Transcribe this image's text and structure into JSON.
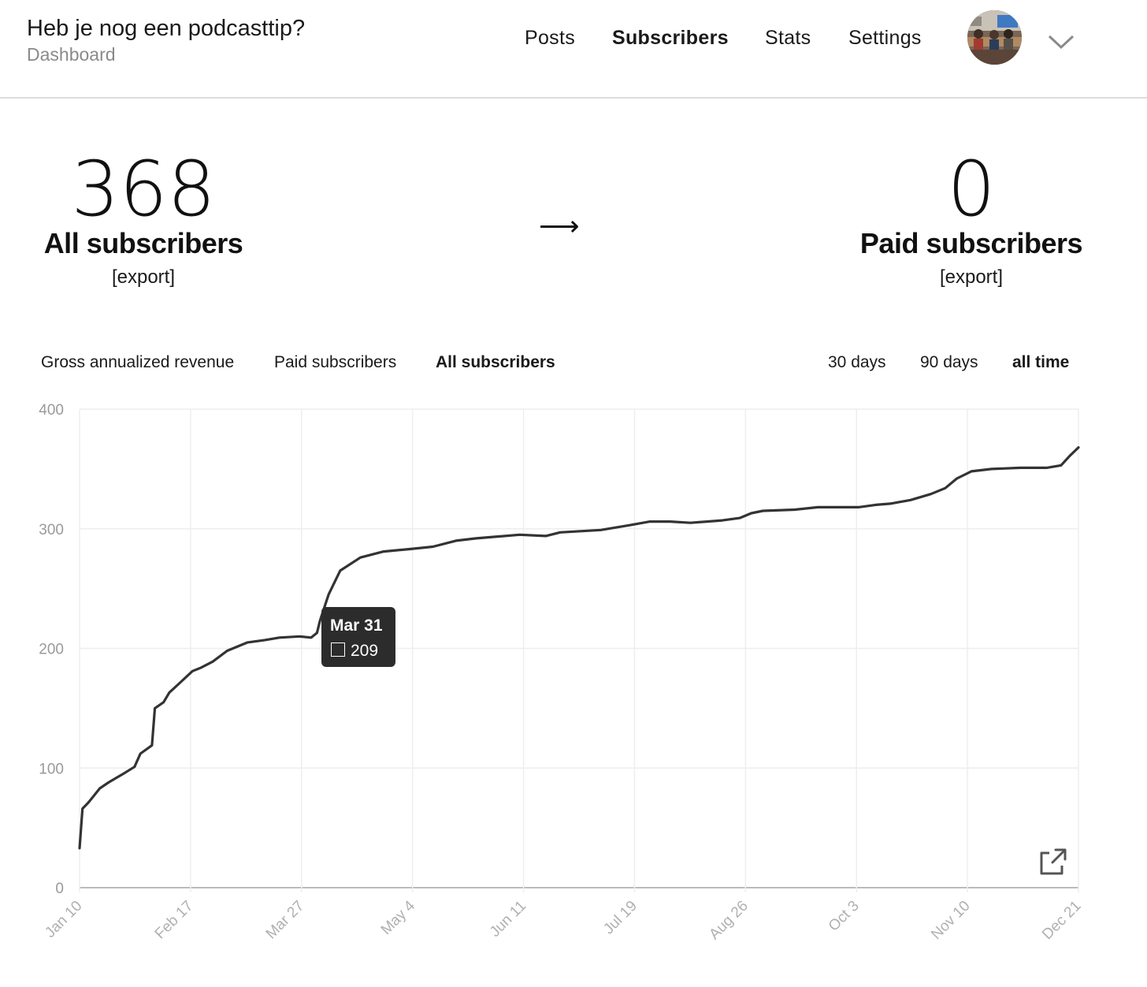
{
  "header": {
    "title": "Heb je nog een podcasttip?",
    "subtitle": "Dashboard",
    "nav": [
      "Posts",
      "Subscribers",
      "Stats",
      "Settings"
    ],
    "active_nav": "Subscribers",
    "avatar_icon": "profile-photo",
    "menu_icon": "chevron-down-icon"
  },
  "summary": {
    "all": {
      "value": "368",
      "label": "All subscribers",
      "export": "[export]"
    },
    "arrow": "⟶",
    "paid": {
      "value": "0",
      "label": "Paid subscribers",
      "export": "[export]"
    }
  },
  "metric_tabs": [
    "Gross annualized revenue",
    "Paid subscribers",
    "All subscribers"
  ],
  "active_metric": "All subscribers",
  "range_tabs": [
    "30 days",
    "90 days",
    "all time"
  ],
  "active_range": "all time",
  "tooltip": {
    "date": "Mar 31",
    "value": "209"
  },
  "colors": {
    "line": "#333333",
    "grid": "#eeeeee",
    "tooltip_bg": "#2c2c2c"
  },
  "chart_data": {
    "type": "line",
    "title": "",
    "xlabel": "",
    "ylabel": "",
    "ylim": [
      0,
      400
    ],
    "y_ticks": [
      "0",
      "100",
      "200",
      "300",
      "400"
    ],
    "x_ticks": [
      "Jan 10",
      "Feb 17",
      "Mar 27",
      "May 4",
      "Jun 11",
      "Jul 19",
      "Aug 26",
      "Oct 3",
      "Nov 10",
      "Dec 21"
    ],
    "grid": true,
    "series": [
      {
        "x": [
          "Jan 10",
          "Jan 11",
          "Jan 13",
          "Jan 17",
          "Jan 20",
          "Jan 25",
          "Jan 29",
          "Jan 31",
          "Feb 4",
          "Feb 5",
          "Feb 8",
          "Feb 10",
          "Feb 14",
          "Feb 18",
          "Feb 21",
          "Feb 25",
          "Mar 2",
          "Mar 9",
          "Mar 15",
          "Mar 20",
          "Mar 27",
          "Mar 31",
          "Apr 2",
          "Apr 3",
          "Apr 6",
          "Apr 10",
          "Apr 17",
          "Apr 25",
          "May 4",
          "May 12",
          "May 20",
          "May 27",
          "Jun 11",
          "Jun 20",
          "Jun 25",
          "Jul 2",
          "Jul 9",
          "Jul 19",
          "Jul 26",
          "Aug 2",
          "Aug 9",
          "Aug 20",
          "Aug 26",
          "Aug 30",
          "Sep 3",
          "Sep 14",
          "Sep 22",
          "Oct 3",
          "Oct 6",
          "Oct 12",
          "Oct 17",
          "Oct 24",
          "Oct 31",
          "Nov 5",
          "Nov 9",
          "Nov 14",
          "Nov 21",
          "Dec 1",
          "Dec 10",
          "Dec 15",
          "Dec 18",
          "Dec 21"
        ],
        "values": [
          33,
          66,
          71,
          83,
          88,
          95,
          101,
          112,
          119,
          150,
          155,
          163,
          172,
          181,
          184,
          189,
          198,
          205,
          207,
          209,
          210,
          209,
          213,
          223,
          245,
          265,
          276,
          281,
          283,
          285,
          290,
          292,
          295,
          294,
          297,
          298,
          299,
          303,
          306,
          306,
          305,
          307,
          309,
          313,
          315,
          316,
          318,
          318,
          318,
          320,
          321,
          324,
          329,
          334,
          342,
          348,
          350,
          351,
          351,
          353,
          361,
          368
        ]
      }
    ]
  }
}
